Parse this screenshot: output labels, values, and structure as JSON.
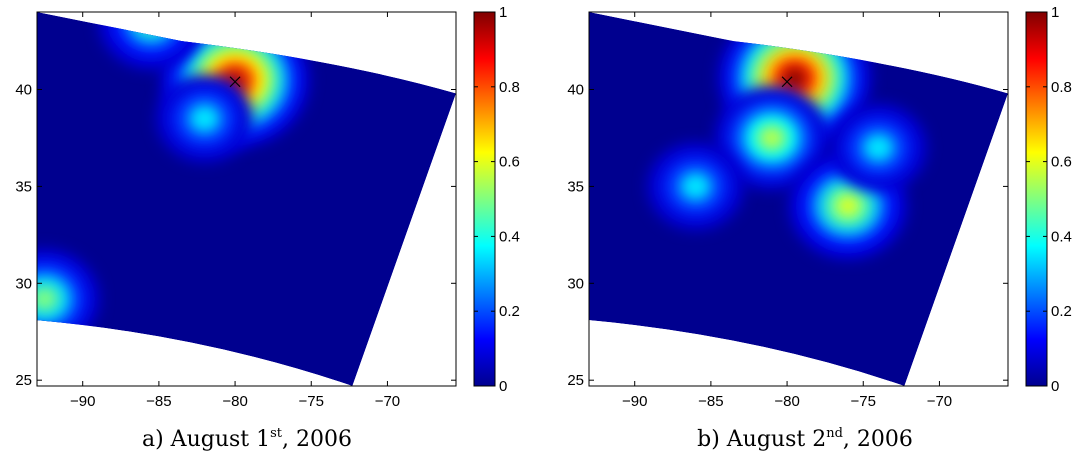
{
  "chart_data": [
    {
      "type": "heatmap",
      "caption": {
        "prefix": "a) August 1",
        "sup": "st",
        "suffix": ", 2006"
      },
      "x_ticks": [
        -90,
        -85,
        -80,
        -75,
        -70
      ],
      "y_ticks": [
        25,
        30,
        35,
        40
      ],
      "xlim": [
        -93,
        -65.5
      ],
      "ylim": [
        24.7,
        44
      ],
      "colorbar": {
        "min": 0,
        "max": 1,
        "ticks": [
          0,
          0.2,
          0.4,
          0.6,
          0.8,
          1
        ]
      },
      "marker": {
        "x": -80,
        "y": 40.4
      },
      "hotspots": [
        {
          "x": -80,
          "y": 40.5,
          "value": 0.95
        },
        {
          "x": -85.5,
          "y": 43.5,
          "value": 0.45
        },
        {
          "x": -92.5,
          "y": 29.2,
          "value": 0.5
        },
        {
          "x": -82,
          "y": 38.5,
          "value": 0.35
        }
      ]
    },
    {
      "type": "heatmap",
      "caption": {
        "prefix": "b) August 2",
        "sup": "nd",
        "suffix": ", 2006"
      },
      "x_ticks": [
        -90,
        -85,
        -80,
        -75,
        -70
      ],
      "y_ticks": [
        25,
        30,
        35,
        40
      ],
      "xlim": [
        -93,
        -65.5
      ],
      "ylim": [
        24.7,
        44
      ],
      "colorbar": {
        "min": 0,
        "max": 1,
        "ticks": [
          0,
          0.2,
          0.4,
          0.6,
          0.8,
          1
        ]
      },
      "marker": {
        "x": -80,
        "y": 40.4
      },
      "hotspots": [
        {
          "x": -79.5,
          "y": 40.6,
          "value": 1.0
        },
        {
          "x": -81,
          "y": 37.5,
          "value": 0.55
        },
        {
          "x": -76,
          "y": 34,
          "value": 0.6
        },
        {
          "x": -86,
          "y": 35,
          "value": 0.35
        },
        {
          "x": -74,
          "y": 37,
          "value": 0.35
        }
      ]
    }
  ],
  "colors": {
    "background_field": "#00008f",
    "low": "#0000ff",
    "high": "#800000"
  }
}
